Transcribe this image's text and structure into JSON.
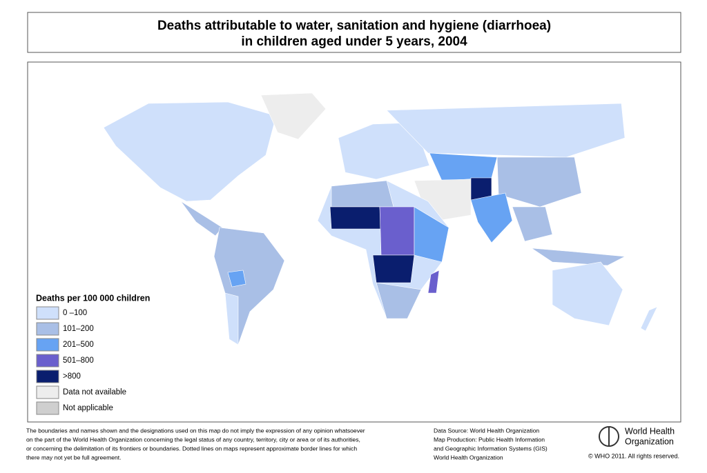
{
  "header": {
    "title_line1": "Deaths attributable to water, sanitation and hygiene (diarrhoea)",
    "title_line2": "in children aged under 5 years, 2004"
  },
  "legend": {
    "title": "Deaths per 100 000 children",
    "items": [
      {
        "label": "0 –100",
        "color": "#cfe0fb"
      },
      {
        "label": "101–200",
        "color": "#a9bfe6"
      },
      {
        "label": "201–500",
        "color": "#67a3f3"
      },
      {
        "label": "501–800",
        "color": "#6a5fcd"
      },
      {
        "label": ">800",
        "color": "#0a1e6e"
      },
      {
        "label": "Data not available",
        "color": "#ededed"
      },
      {
        "label": "Not applicable",
        "color": "#cfcfcf"
      }
    ]
  },
  "footer": {
    "disclaimer": [
      "The boundaries and names shown and the designations used on this map do not imply the expression of any opinion whatsoever",
      "on the part of the World Health Organization concerning the legal status of any country, territory, city or area or of its authorities,",
      "or concerning the delimitation of its frontiers or boundaries.  Dotted lines on maps represent approximate border lines for which",
      "there may not yet be full agreement."
    ],
    "source": [
      "Data Source: World Health Organization",
      "Map Production: Public Health Information",
      "and Geographic Information Systems (GIS)",
      "World Health Organization"
    ],
    "logo": [
      "World Health",
      "Organization"
    ],
    "copyright": "© WHO 2011. All rights reserved."
  }
}
